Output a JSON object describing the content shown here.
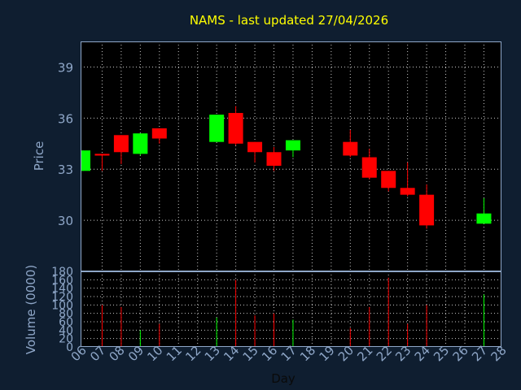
{
  "chart_data": {
    "type": "candlestick",
    "title": "NAMS - last updated 27/04/2026",
    "xlabel": "Day",
    "price_panel": {
      "ylabel": "Price",
      "ylim": [
        27.0,
        40.5
      ],
      "yticks": [
        30,
        33,
        36,
        39
      ],
      "grid": true
    },
    "volume_panel": {
      "ylabel": "Volume (0000)",
      "ylim": [
        0,
        180
      ],
      "yticks": [
        0,
        20,
        40,
        60,
        80,
        100,
        120,
        140,
        160,
        180
      ],
      "grid": true
    },
    "x_tick_labels": [
      "06",
      "07",
      "08",
      "09",
      "10",
      "11",
      "12",
      "13",
      "14",
      "15",
      "16",
      "17",
      "18",
      "19",
      "20",
      "21",
      "22",
      "23",
      "24",
      "25",
      "26",
      "27",
      "28"
    ],
    "up_color": "#00ff00",
    "down_color": "#ff0000",
    "candles": [
      {
        "day": "06",
        "open": 32.9,
        "high": 34.1,
        "low": 32.9,
        "close": 34.1,
        "volume": 0
      },
      {
        "day": "07",
        "open": 33.9,
        "high": 33.9,
        "low": 32.9,
        "close": 33.8,
        "volume": 100
      },
      {
        "day": "08",
        "open": 35.0,
        "high": 35.0,
        "low": 33.3,
        "close": 34.0,
        "volume": 95
      },
      {
        "day": "09",
        "open": 33.9,
        "high": 35.1,
        "low": 33.8,
        "close": 35.1,
        "volume": 40
      },
      {
        "day": "10",
        "open": 35.4,
        "high": 35.4,
        "low": 34.5,
        "close": 34.8,
        "volume": 55
      },
      {
        "day": "13",
        "open": 34.6,
        "high": 36.2,
        "low": 34.6,
        "close": 36.2,
        "volume": 70
      },
      {
        "day": "14",
        "open": 36.3,
        "high": 36.7,
        "low": 34.4,
        "close": 34.5,
        "volume": 160
      },
      {
        "day": "15",
        "open": 34.6,
        "high": 34.6,
        "low": 33.4,
        "close": 34.0,
        "volume": 75
      },
      {
        "day": "16",
        "open": 34.0,
        "high": 34.3,
        "low": 32.9,
        "close": 33.2,
        "volume": 80
      },
      {
        "day": "17",
        "open": 34.1,
        "high": 34.7,
        "low": 33.7,
        "close": 34.7,
        "volume": 65
      },
      {
        "day": "20",
        "open": 34.6,
        "high": 35.3,
        "low": 33.7,
        "close": 33.8,
        "volume": 45
      },
      {
        "day": "21",
        "open": 33.7,
        "high": 34.2,
        "low": 32.4,
        "close": 32.5,
        "volume": 95
      },
      {
        "day": "22",
        "open": 32.9,
        "high": 32.9,
        "low": 31.7,
        "close": 31.9,
        "volume": 165
      },
      {
        "day": "23",
        "open": 31.9,
        "high": 33.4,
        "low": 31.4,
        "close": 31.5,
        "volume": 55
      },
      {
        "day": "24",
        "open": 31.5,
        "high": 32.1,
        "low": 29.5,
        "close": 29.7,
        "volume": 100
      },
      {
        "day": "27",
        "open": 29.8,
        "high": 31.3,
        "low": 29.8,
        "close": 30.4,
        "volume": 125
      }
    ]
  }
}
